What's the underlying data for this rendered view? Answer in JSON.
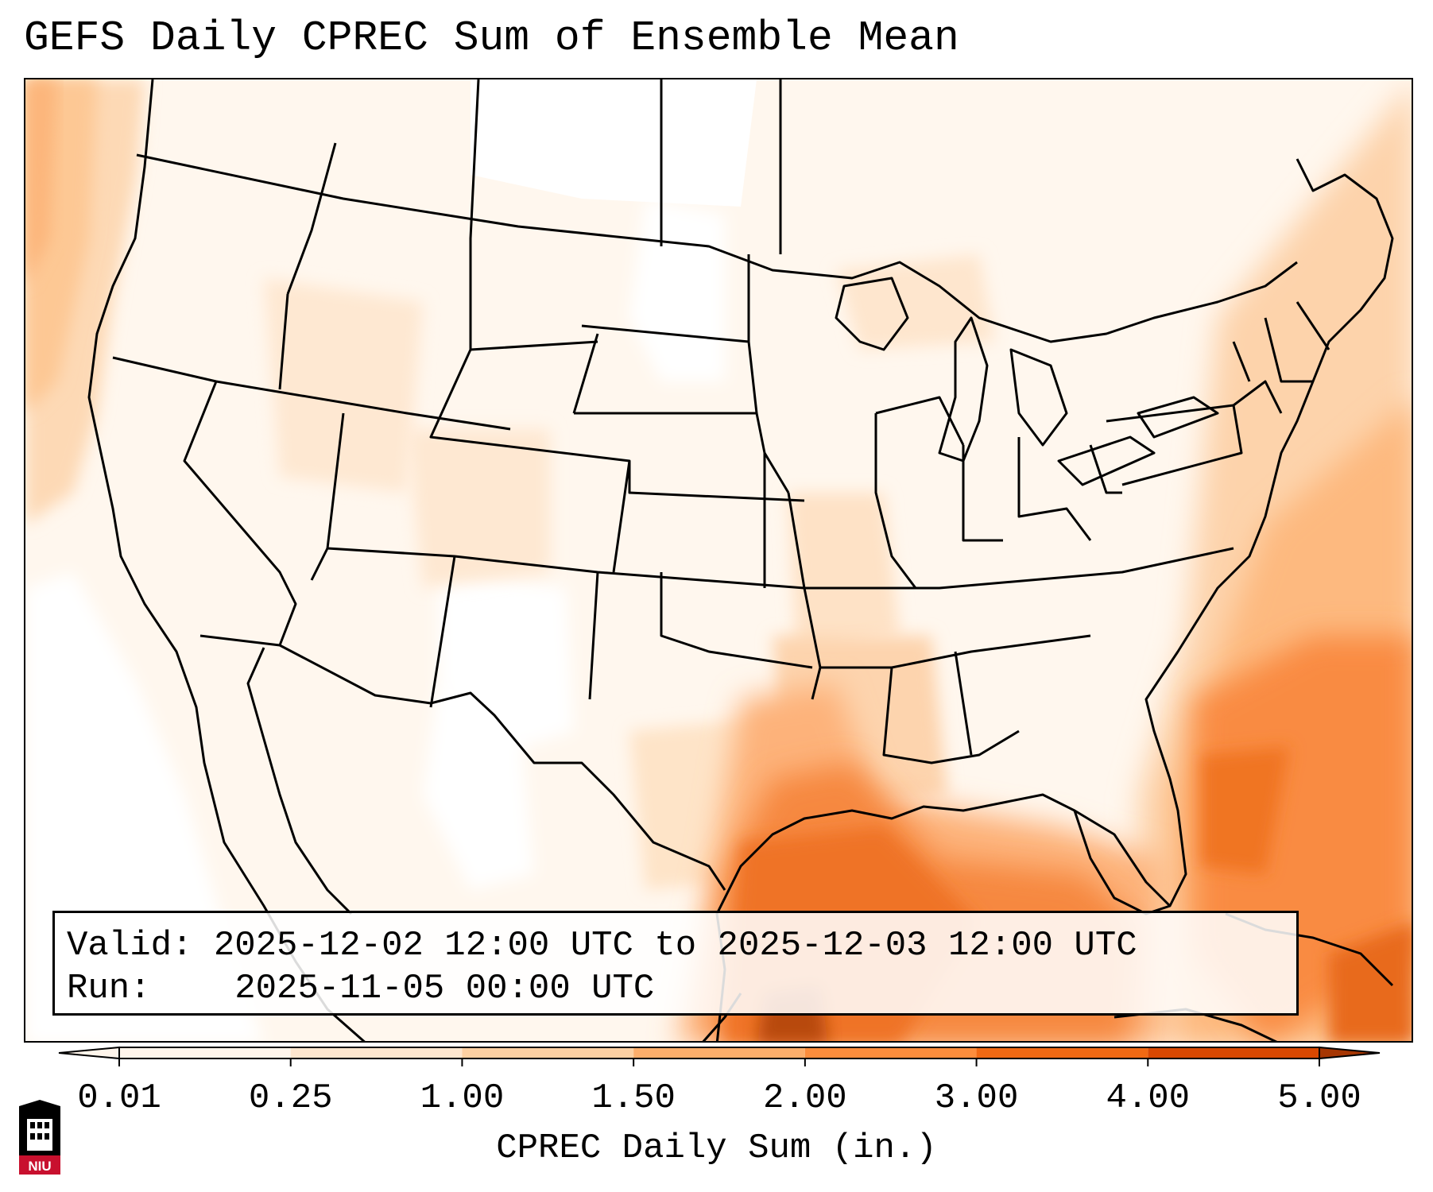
{
  "title": "GEFS Daily CPREC Sum of Ensemble Mean",
  "info": {
    "valid_label": "Valid:",
    "valid_value": "2025-12-02 12:00 UTC to 2025-12-03 12:00 UTC",
    "run_label": "Run:",
    "run_value": "2025-11-05 00:00 UTC"
  },
  "colorbar": {
    "label": "CPREC Daily Sum (in.)",
    "ticks": [
      "0.01",
      "0.25",
      "1.00",
      "1.50",
      "2.00",
      "3.00",
      "4.00",
      "5.00"
    ],
    "colors": [
      "#fff5eb",
      "#fee6ce",
      "#fdd0a2",
      "#fdae6b",
      "#fd8d3c",
      "#f16913",
      "#d94801",
      "#a63603"
    ],
    "extend": "both"
  },
  "logo": {
    "text": "NIU",
    "colors": {
      "shield": "#c8102e",
      "tower": "#000000"
    }
  },
  "icons": [
    "niu-logo-icon"
  ]
}
